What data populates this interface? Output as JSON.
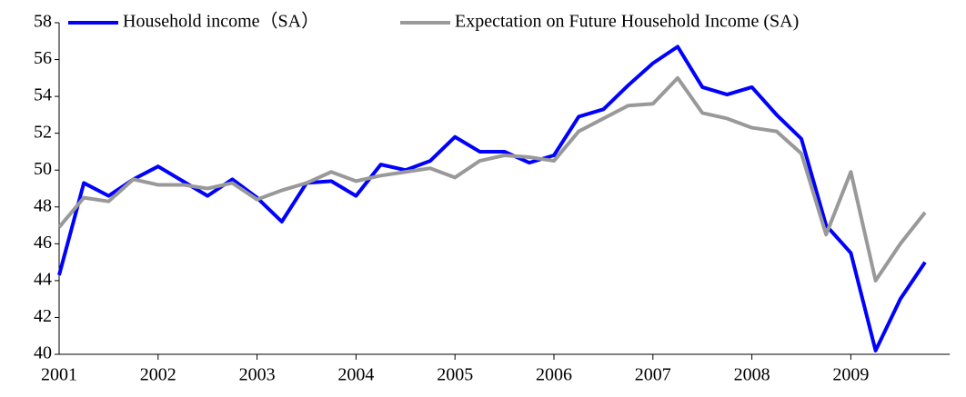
{
  "chart_data": {
    "type": "line",
    "categories": [
      "2001",
      null,
      null,
      null,
      "2002",
      null,
      null,
      null,
      "2003",
      null,
      null,
      null,
      "2004",
      null,
      null,
      null,
      "2005",
      null,
      null,
      null,
      "2006",
      null,
      null,
      null,
      "2007",
      null,
      null,
      null,
      "2008",
      null,
      null,
      null,
      "2009",
      null,
      null,
      null
    ],
    "series": [
      {
        "name": "Household income（SA）",
        "color": "#0000ff",
        "values": [
          44.3,
          49.3,
          48.6,
          49.5,
          50.2,
          49.4,
          48.6,
          49.5,
          48.5,
          47.2,
          49.3,
          49.4,
          48.6,
          50.3,
          50.0,
          50.5,
          51.8,
          51.0,
          51.0,
          50.4,
          50.8,
          52.9,
          53.3,
          54.6,
          55.8,
          56.7,
          54.5,
          54.1,
          54.5,
          53.0,
          51.7,
          47.0,
          45.5,
          40.2,
          43.0,
          45.0
        ]
      },
      {
        "name": "Expectation on Future Household Income (SA)",
        "color": "#999999",
        "values": [
          46.9,
          48.5,
          48.3,
          49.5,
          49.2,
          49.2,
          49.0,
          49.3,
          48.4,
          48.9,
          49.3,
          49.9,
          49.4,
          49.7,
          49.9,
          50.1,
          49.6,
          50.5,
          50.8,
          50.7,
          50.5,
          52.1,
          52.8,
          53.5,
          53.6,
          55.0,
          53.1,
          52.8,
          52.3,
          52.1,
          50.9,
          46.5,
          49.9,
          44.0,
          46.0,
          47.7
        ]
      }
    ],
    "ylim": [
      40,
      58
    ],
    "yticks": [
      40,
      42,
      44,
      46,
      48,
      50,
      52,
      54,
      56,
      58
    ],
    "grid": false,
    "legend": "top"
  }
}
